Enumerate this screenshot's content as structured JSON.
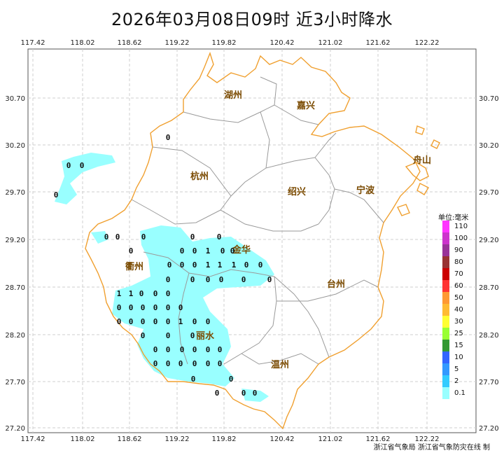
{
  "title": "2026年03月08日09时  近3小时降水",
  "axes": {
    "x_ticks": [
      "117.42",
      "118.02",
      "118.62",
      "119.22",
      "119.82",
      "120.42",
      "121.02",
      "121.62",
      "122.22"
    ],
    "y_ticks": [
      "30.70",
      "30.20",
      "29.70",
      "29.20",
      "28.70",
      "28.20",
      "27.70",
      "27.20"
    ]
  },
  "cities": [
    {
      "name": "湖州"
    },
    {
      "name": "嘉兴"
    },
    {
      "name": "杭州"
    },
    {
      "name": "绍兴"
    },
    {
      "name": "宁波"
    },
    {
      "name": "舟山"
    },
    {
      "name": "金华"
    },
    {
      "name": "衢州"
    },
    {
      "name": "台州"
    },
    {
      "name": "丽水"
    },
    {
      "name": "温州"
    }
  ],
  "legend": {
    "title": "单位:毫米",
    "items": [
      {
        "label": "110",
        "color": "#ff33ff"
      },
      {
        "label": "100",
        "color": "#cc33cc"
      },
      {
        "label": "90",
        "color": "#993399"
      },
      {
        "label": "80",
        "color": "#993333"
      },
      {
        "label": "70",
        "color": "#cc0000"
      },
      {
        "label": "60",
        "color": "#ff3333"
      },
      {
        "label": "50",
        "color": "#ff9933"
      },
      {
        "label": "40",
        "color": "#ffbb33"
      },
      {
        "label": "30",
        "color": "#ffff33"
      },
      {
        "label": "25",
        "color": "#99ff33"
      },
      {
        "label": "15",
        "color": "#339933"
      },
      {
        "label": "10",
        "color": "#3366ff"
      },
      {
        "label": "5",
        "color": "#3399ff"
      },
      {
        "label": "2",
        "color": "#33ccff"
      },
      {
        "label": "0.1",
        "color": "#99ffff"
      }
    ]
  },
  "stations": [
    {
      "v": "0"
    },
    {
      "v": "0"
    },
    {
      "v": "0"
    },
    {
      "v": "0"
    },
    {
      "v": "0"
    },
    {
      "v": "0"
    },
    {
      "v": "0"
    },
    {
      "v": "0"
    },
    {
      "v": "0"
    },
    {
      "v": "0"
    },
    {
      "v": "0"
    },
    {
      "v": "0"
    },
    {
      "v": "1"
    },
    {
      "v": "0"
    },
    {
      "v": "0"
    },
    {
      "v": "0"
    },
    {
      "v": "0"
    },
    {
      "v": "0"
    },
    {
      "v": "1"
    },
    {
      "v": "1"
    },
    {
      "v": "1"
    },
    {
      "v": "0"
    },
    {
      "v": "0"
    },
    {
      "v": "0"
    },
    {
      "v": "0"
    },
    {
      "v": "0"
    },
    {
      "v": "0"
    },
    {
      "v": "0"
    },
    {
      "v": "0"
    },
    {
      "v": "1"
    },
    {
      "v": "1"
    },
    {
      "v": "0"
    },
    {
      "v": "0"
    },
    {
      "v": "0"
    },
    {
      "v": "0"
    },
    {
      "v": "0"
    },
    {
      "v": "0"
    },
    {
      "v": "0"
    },
    {
      "v": "0"
    },
    {
      "v": "0"
    },
    {
      "v": "0"
    },
    {
      "v": "0"
    },
    {
      "v": "0"
    },
    {
      "v": "0"
    },
    {
      "v": "0"
    },
    {
      "v": "1"
    },
    {
      "v": "0"
    },
    {
      "v": "0"
    },
    {
      "v": "0"
    },
    {
      "v": "0"
    },
    {
      "v": "0"
    },
    {
      "v": "0"
    },
    {
      "v": "0"
    },
    {
      "v": "0"
    },
    {
      "v": "0"
    },
    {
      "v": "0"
    },
    {
      "v": "0"
    },
    {
      "v": "0"
    },
    {
      "v": "0"
    },
    {
      "v": "0"
    },
    {
      "v": "0"
    },
    {
      "v": "0"
    },
    {
      "v": "0"
    },
    {
      "v": "0"
    },
    {
      "v": "0"
    },
    {
      "v": "0"
    },
    {
      "v": "0"
    },
    {
      "v": "0"
    }
  ],
  "footer": "浙江省气象局  浙江省气象防灾在线  制"
}
